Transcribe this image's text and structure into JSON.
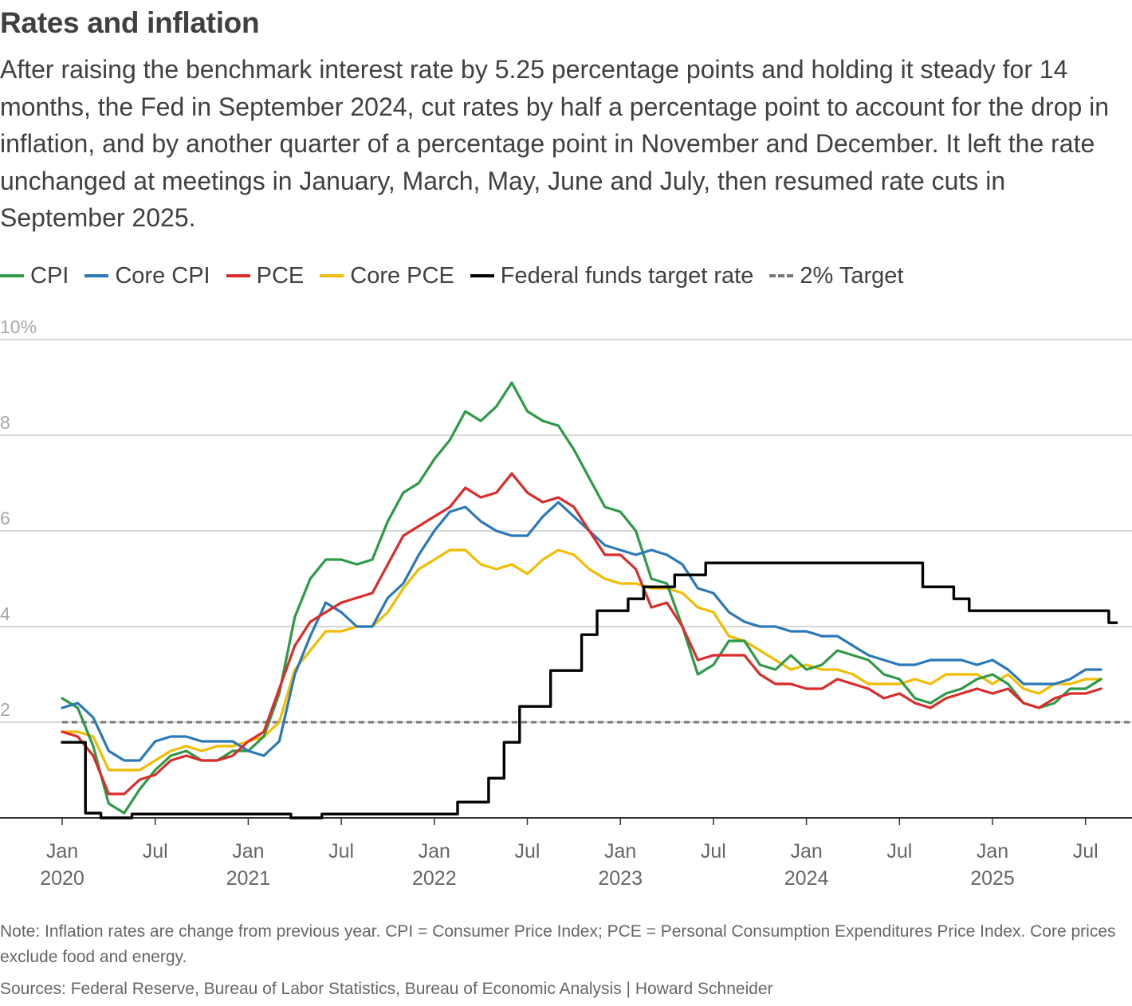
{
  "header": {
    "title": "Rates and inflation",
    "subtitle": "After raising the benchmark interest rate by 5.25 percentage points and holding it steady for 14 months, the Fed in September 2024, cut rates by half a percentage point to account for the drop in inflation, and by another quarter of a percentage point in November and December. It left the rate unchanged at meetings in January, March, May, June and July, then resumed rate cuts in September 2025."
  },
  "legend": [
    {
      "label": "CPI",
      "color": "#2e9a48",
      "style": "solid"
    },
    {
      "label": "Core CPI",
      "color": "#2a78b8",
      "style": "solid"
    },
    {
      "label": "PCE",
      "color": "#dc2b2b",
      "style": "solid"
    },
    {
      "label": "Core PCE",
      "color": "#f2bd00",
      "style": "solid"
    },
    {
      "label": "Federal funds target rate",
      "color": "#000000",
      "style": "solid"
    },
    {
      "label": "2% Target",
      "color": "#777777",
      "style": "dashed"
    }
  ],
  "chart_data": {
    "type": "line",
    "ylim": [
      0,
      10
    ],
    "yticks": [
      {
        "value": 10,
        "label": "10%"
      },
      {
        "value": 8,
        "label": "8"
      },
      {
        "value": 6,
        "label": "6"
      },
      {
        "value": 4,
        "label": "4"
      },
      {
        "value": 2,
        "label": "2"
      }
    ],
    "x_start": "2020-01",
    "x_end": "2025-09",
    "xticks": [
      {
        "month": 0,
        "line1": "Jan",
        "line2": "2020"
      },
      {
        "month": 6,
        "line1": "Jul",
        "line2": ""
      },
      {
        "month": 12,
        "line1": "Jan",
        "line2": "2021"
      },
      {
        "month": 18,
        "line1": "Jul",
        "line2": ""
      },
      {
        "month": 24,
        "line1": "Jan",
        "line2": "2022"
      },
      {
        "month": 30,
        "line1": "Jul",
        "line2": ""
      },
      {
        "month": 36,
        "line1": "Jan",
        "line2": "2023"
      },
      {
        "month": 42,
        "line1": "Jul",
        "line2": ""
      },
      {
        "month": 48,
        "line1": "Jan",
        "line2": "2024"
      },
      {
        "month": 54,
        "line1": "Jul",
        "line2": ""
      },
      {
        "month": 60,
        "line1": "Jan",
        "line2": "2025"
      },
      {
        "month": 66,
        "line1": "Jul",
        "line2": ""
      }
    ],
    "target": 2,
    "series": [
      {
        "name": "Core PCE",
        "color": "#f2bd00",
        "values": [
          1.8,
          1.8,
          1.7,
          1.0,
          1.0,
          1.0,
          1.2,
          1.4,
          1.5,
          1.4,
          1.5,
          1.5,
          1.6,
          1.7,
          2.0,
          3.1,
          3.5,
          3.9,
          3.9,
          4.0,
          4.0,
          4.3,
          4.8,
          5.2,
          5.4,
          5.6,
          5.6,
          5.3,
          5.2,
          5.3,
          5.1,
          5.4,
          5.6,
          5.5,
          5.2,
          5.0,
          4.9,
          4.9,
          4.8,
          4.8,
          4.7,
          4.4,
          4.3,
          3.8,
          3.7,
          3.5,
          3.3,
          3.1,
          3.2,
          3.1,
          3.1,
          3.0,
          2.8,
          2.8,
          2.8,
          2.9,
          2.8,
          3.0,
          3.0,
          3.0,
          2.8,
          3.0,
          2.7,
          2.6,
          2.8,
          2.8,
          2.9,
          2.9
        ]
      },
      {
        "name": "CPI",
        "color": "#2e9a48",
        "values": [
          2.5,
          2.3,
          1.5,
          0.3,
          0.1,
          0.6,
          1.0,
          1.3,
          1.4,
          1.2,
          1.2,
          1.4,
          1.4,
          1.7,
          2.6,
          4.2,
          5.0,
          5.4,
          5.4,
          5.3,
          5.4,
          6.2,
          6.8,
          7.0,
          7.5,
          7.9,
          8.5,
          8.3,
          8.6,
          9.1,
          8.5,
          8.3,
          8.2,
          7.7,
          7.1,
          6.5,
          6.4,
          6.0,
          5.0,
          4.9,
          4.0,
          3.0,
          3.2,
          3.7,
          3.7,
          3.2,
          3.1,
          3.4,
          3.1,
          3.2,
          3.5,
          3.4,
          3.3,
          3.0,
          2.9,
          2.5,
          2.4,
          2.6,
          2.7,
          2.9,
          3.0,
          2.8,
          2.4,
          2.3,
          2.4,
          2.7,
          2.7,
          2.9
        ]
      },
      {
        "name": "Core CPI",
        "color": "#2a78b8",
        "values": [
          2.3,
          2.4,
          2.1,
          1.4,
          1.2,
          1.2,
          1.6,
          1.7,
          1.7,
          1.6,
          1.6,
          1.6,
          1.4,
          1.3,
          1.6,
          3.0,
          3.8,
          4.5,
          4.3,
          4.0,
          4.0,
          4.6,
          4.9,
          5.5,
          6.0,
          6.4,
          6.5,
          6.2,
          6.0,
          5.9,
          5.9,
          6.3,
          6.6,
          6.3,
          6.0,
          5.7,
          5.6,
          5.5,
          5.6,
          5.5,
          5.3,
          4.8,
          4.7,
          4.3,
          4.1,
          4.0,
          4.0,
          3.9,
          3.9,
          3.8,
          3.8,
          3.6,
          3.4,
          3.3,
          3.2,
          3.2,
          3.3,
          3.3,
          3.3,
          3.2,
          3.3,
          3.1,
          2.8,
          2.8,
          2.8,
          2.9,
          3.1,
          3.1
        ]
      },
      {
        "name": "PCE",
        "color": "#dc2b2b",
        "values": [
          1.8,
          1.7,
          1.3,
          0.5,
          0.5,
          0.8,
          0.9,
          1.2,
          1.3,
          1.2,
          1.2,
          1.3,
          1.6,
          1.8,
          2.7,
          3.6,
          4.1,
          4.3,
          4.5,
          4.6,
          4.7,
          5.3,
          5.9,
          6.1,
          6.3,
          6.5,
          6.9,
          6.7,
          6.8,
          7.2,
          6.8,
          6.6,
          6.7,
          6.5,
          6.0,
          5.5,
          5.5,
          5.2,
          4.4,
          4.5,
          4.0,
          3.3,
          3.4,
          3.4,
          3.4,
          3.0,
          2.8,
          2.8,
          2.7,
          2.7,
          2.9,
          2.8,
          2.7,
          2.5,
          2.6,
          2.4,
          2.3,
          2.5,
          2.6,
          2.7,
          2.6,
          2.7,
          2.4,
          2.3,
          2.5,
          2.6,
          2.6,
          2.7
        ]
      },
      {
        "name": "Federal funds target rate",
        "color": "#000000",
        "step": true,
        "points": [
          [
            0,
            1.58
          ],
          [
            1.5,
            1.58
          ],
          [
            1.5,
            0.1
          ],
          [
            2.5,
            0.1
          ],
          [
            2.5,
            0.0
          ],
          [
            4.5,
            0.0
          ],
          [
            4.5,
            0.08
          ],
          [
            14.75,
            0.08
          ],
          [
            14.75,
            0.0
          ],
          [
            16.75,
            0.0
          ],
          [
            16.75,
            0.08
          ],
          [
            25.5,
            0.08
          ],
          [
            25.5,
            0.33
          ],
          [
            27.5,
            0.33
          ],
          [
            27.5,
            0.83
          ],
          [
            28.5,
            0.83
          ],
          [
            28.5,
            1.58
          ],
          [
            29.5,
            1.58
          ],
          [
            29.5,
            2.33
          ],
          [
            31.5,
            2.33
          ],
          [
            31.5,
            3.08
          ],
          [
            33.5,
            3.08
          ],
          [
            33.5,
            3.83
          ],
          [
            34.5,
            3.83
          ],
          [
            34.5,
            4.33
          ],
          [
            36.5,
            4.33
          ],
          [
            36.5,
            4.58
          ],
          [
            37.5,
            4.58
          ],
          [
            37.5,
            4.83
          ],
          [
            39.5,
            4.83
          ],
          [
            39.5,
            5.08
          ],
          [
            41.5,
            5.08
          ],
          [
            41.5,
            5.33
          ],
          [
            55.5,
            5.33
          ],
          [
            55.5,
            4.83
          ],
          [
            57.5,
            4.83
          ],
          [
            57.5,
            4.58
          ],
          [
            58.5,
            4.58
          ],
          [
            58.5,
            4.33
          ],
          [
            67.5,
            4.33
          ],
          [
            67.5,
            4.08
          ],
          [
            68,
            4.08
          ]
        ]
      }
    ]
  },
  "footer": {
    "note": "Note: Inflation rates are change from previous year. CPI = Consumer Price Index; PCE = Personal Consumption Expenditures Price Index. Core prices exclude food and energy.",
    "source": "Sources: Federal Reserve, Bureau of Labor Statistics, Bureau of Economic Analysis | Howard Schneider"
  }
}
